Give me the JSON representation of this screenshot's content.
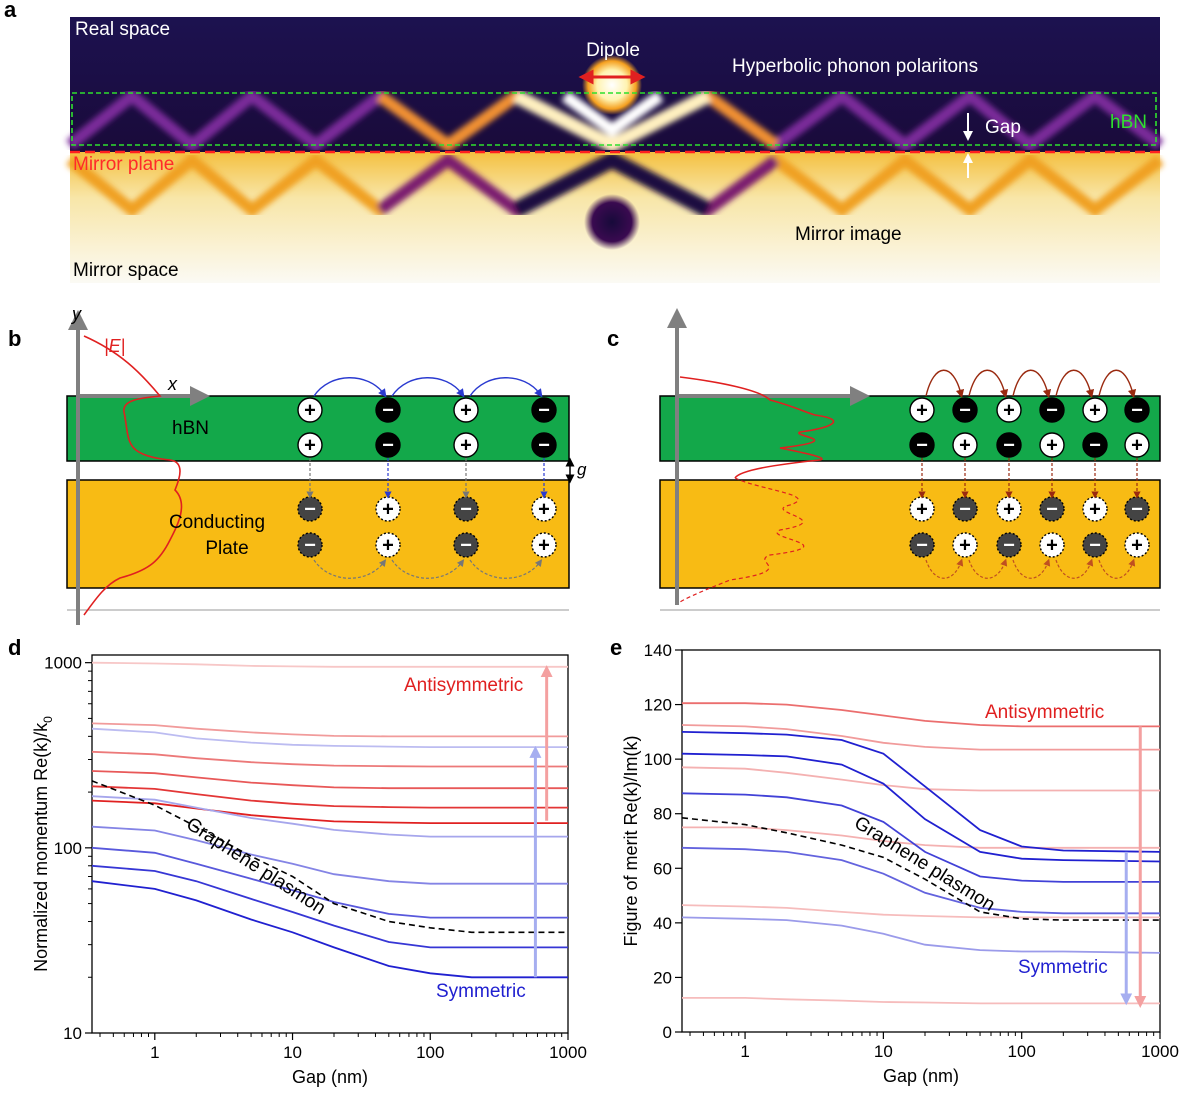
{
  "panels": {
    "a": {
      "letter": "a",
      "real_space": "Real space",
      "mirror_space": "Mirror space",
      "dipole": "Dipole",
      "hpp": "Hyperbolic phonon polaritons",
      "gap": "Gap",
      "hbn": "hBN",
      "mirror_plane": "Mirror plane",
      "mirror_image": "Mirror image"
    },
    "b": {
      "letter": "b",
      "y": "y",
      "x": "x",
      "field": "|E|",
      "hbn": "hBN",
      "g": "g",
      "plate_line1": "Conducting",
      "plate_line2": "Plate",
      "top_row": [
        "+",
        "-",
        "+",
        "-"
      ],
      "bottom_row": [
        "-",
        "+",
        "-",
        "+"
      ]
    },
    "c": {
      "letter": "c",
      "row1": [
        "+",
        "-",
        "+",
        "-",
        "+",
        "-"
      ],
      "row2": [
        "-",
        "+",
        "-",
        "+",
        "-",
        "+"
      ]
    }
  },
  "colors": {
    "hbn_green": "#13a84a",
    "plate_yellow": "#f8bb14",
    "antisymmetric": "#e02020",
    "symmetric": "#2020d0"
  },
  "chart_data": [
    {
      "panel": "d",
      "type": "line",
      "xscale": "log",
      "yscale": "log",
      "xlim": [
        0.35,
        1000
      ],
      "ylim": [
        10,
        1100
      ],
      "xticks": [
        "1",
        "10",
        "100",
        "1000"
      ],
      "yticks": [
        "10",
        "100",
        "1000"
      ],
      "xlabel": "Gap (nm)",
      "ylabel": "Normalized momentum Re(k)/k",
      "ylabel_sub": "0",
      "annotations": {
        "antisymmetric": "Antisymmetric",
        "symmetric": "Symmetric",
        "graphene": "Graphene plasmon"
      },
      "x": [
        0.35,
        1,
        2,
        5,
        10,
        20,
        50,
        100,
        200,
        1000
      ],
      "series": [
        {
          "group": "antisymmetric",
          "shade": 0.25,
          "values": [
            1000,
            990,
            980,
            960,
            955,
            950,
            950,
            950,
            950,
            950
          ]
        },
        {
          "group": "antisymmetric",
          "shade": 0.45,
          "values": [
            470,
            460,
            440,
            420,
            410,
            402,
            400,
            400,
            400,
            400
          ]
        },
        {
          "group": "antisymmetric",
          "shade": 0.6,
          "values": [
            330,
            320,
            305,
            290,
            283,
            278,
            276,
            275,
            275,
            275
          ]
        },
        {
          "group": "antisymmetric",
          "shade": 0.75,
          "values": [
            260,
            253,
            240,
            225,
            218,
            212,
            210,
            210,
            210,
            210
          ]
        },
        {
          "group": "antisymmetric",
          "shade": 0.9,
          "values": [
            215,
            208,
            195,
            180,
            173,
            168,
            166,
            165,
            165,
            165
          ]
        },
        {
          "group": "antisymmetric",
          "shade": 1.0,
          "values": [
            180,
            174,
            163,
            150,
            144,
            139,
            137,
            136,
            136,
            136
          ]
        },
        {
          "group": "symmetric",
          "shade": 0.3,
          "values": [
            440,
            420,
            390,
            370,
            360,
            355,
            352,
            350,
            350,
            350
          ]
        },
        {
          "group": "symmetric",
          "shade": 0.4,
          "values": [
            190,
            182,
            165,
            145,
            135,
            125,
            118,
            115,
            115,
            115
          ]
        },
        {
          "group": "symmetric",
          "shade": 0.55,
          "values": [
            130,
            124,
            110,
            92,
            82,
            72,
            66,
            64,
            64,
            64
          ]
        },
        {
          "group": "symmetric",
          "shade": 0.75,
          "values": [
            100,
            94,
            82,
            68,
            59,
            51,
            44,
            42,
            42,
            42
          ]
        },
        {
          "group": "symmetric",
          "shade": 0.9,
          "values": [
            80,
            75,
            66,
            53,
            45,
            38,
            31,
            29,
            29,
            29
          ]
        },
        {
          "group": "symmetric",
          "shade": 1.0,
          "values": [
            66,
            60,
            52,
            41,
            35,
            29,
            23,
            21,
            20,
            20
          ]
        },
        {
          "group": "graphene",
          "shade": 1.0,
          "values": [
            230,
            170,
            130,
            90,
            70,
            50,
            40,
            37,
            35,
            35
          ]
        }
      ]
    },
    {
      "panel": "e",
      "type": "line",
      "xscale": "log",
      "yscale": "linear",
      "xlim": [
        0.35,
        1000
      ],
      "ylim": [
        0,
        140
      ],
      "xticks": [
        "1",
        "10",
        "100",
        "1000"
      ],
      "yticks": [
        "0",
        "20",
        "40",
        "60",
        "80",
        "100",
        "120",
        "140"
      ],
      "xlabel": "Gap (nm)",
      "ylabel": "Figure of merit Re(k)/Im(k)",
      "annotations": {
        "antisymmetric": "Antisymmetric",
        "symmetric": "Symmetric",
        "graphene": "Graphene plasmon"
      },
      "x": [
        0.35,
        1,
        2,
        5,
        10,
        20,
        50,
        100,
        200,
        1000
      ],
      "series": [
        {
          "group": "antisymmetric",
          "shade": 0.65,
          "values": [
            120.5,
            120.5,
            120,
            118,
            116,
            114,
            112.5,
            112,
            112,
            112
          ]
        },
        {
          "group": "antisymmetric",
          "shade": 0.45,
          "values": [
            112.5,
            112,
            111,
            108.5,
            106,
            104.5,
            103.5,
            103.5,
            103.5,
            103.5
          ]
        },
        {
          "group": "antisymmetric",
          "shade": 0.35,
          "values": [
            97,
            96.5,
            95,
            92.5,
            90.5,
            89,
            88.5,
            88.5,
            88.5,
            88.5
          ]
        },
        {
          "group": "antisymmetric",
          "shade": 0.35,
          "values": [
            75,
            75,
            74,
            72,
            70,
            68.5,
            67.5,
            67.5,
            67.5,
            67.5
          ]
        },
        {
          "group": "antisymmetric",
          "shade": 0.3,
          "values": [
            46.5,
            46,
            45.5,
            44,
            43,
            42.5,
            42,
            42,
            42,
            42
          ]
        },
        {
          "group": "antisymmetric",
          "shade": 0.3,
          "values": [
            12.5,
            12.5,
            12,
            11.5,
            11,
            10.8,
            10.5,
            10.5,
            10.5,
            10.5
          ]
        },
        {
          "group": "symmetric",
          "shade": 1.0,
          "values": [
            110,
            109.5,
            109,
            107,
            102,
            90,
            74,
            68,
            66.5,
            66
          ]
        },
        {
          "group": "symmetric",
          "shade": 1.0,
          "values": [
            102,
            101.5,
            101,
            98,
            91,
            78,
            66,
            63.5,
            63,
            62.5
          ]
        },
        {
          "group": "symmetric",
          "shade": 0.85,
          "values": [
            87.5,
            87,
            86,
            83,
            77,
            66,
            57,
            55.5,
            55,
            55
          ]
        },
        {
          "group": "symmetric",
          "shade": 0.7,
          "values": [
            67.5,
            67,
            66,
            63,
            58,
            51,
            45.5,
            44,
            43.5,
            43.5
          ]
        },
        {
          "group": "symmetric",
          "shade": 0.45,
          "values": [
            42,
            41.5,
            41,
            39,
            36,
            32,
            30,
            29.5,
            29.5,
            29
          ]
        },
        {
          "group": "graphene",
          "shade": 1.0,
          "values": [
            78.5,
            76,
            73,
            68.5,
            64,
            56,
            44,
            41.5,
            41,
            41
          ]
        }
      ]
    }
  ]
}
